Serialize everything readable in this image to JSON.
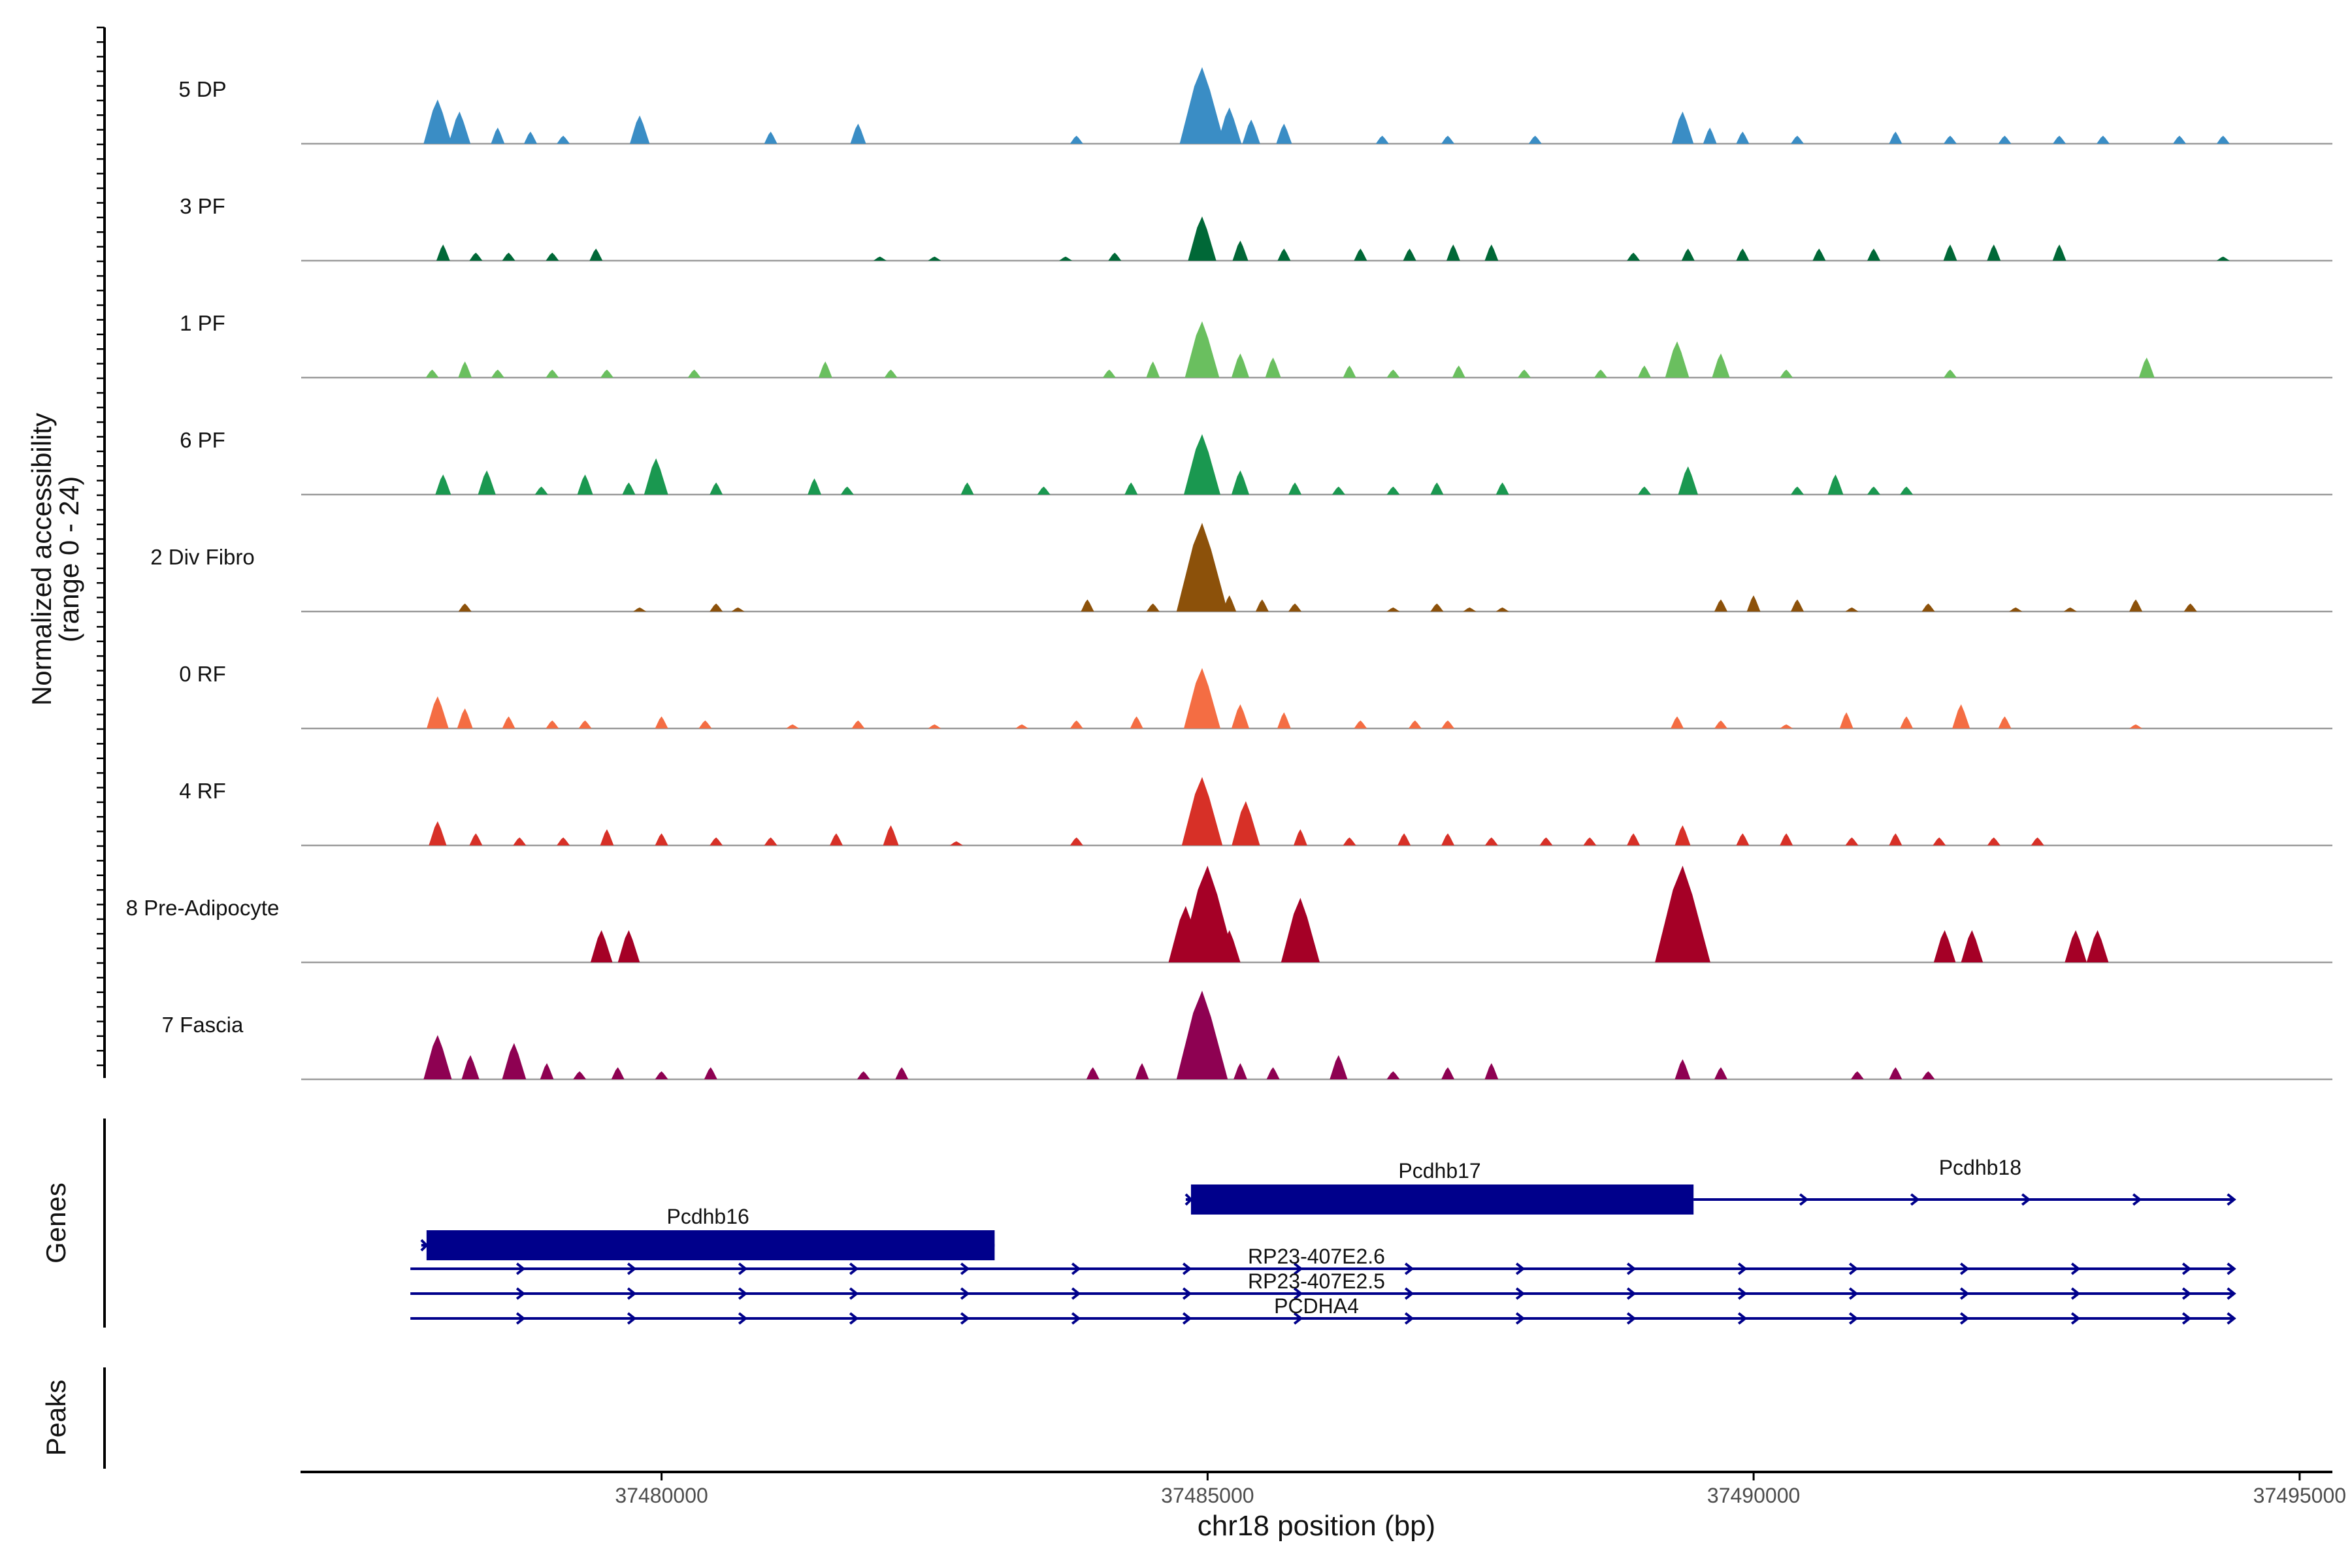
{
  "chart_data": {
    "type": "area",
    "title": "",
    "chromosome": "chr18",
    "xlabel": "chr18 position (bp)",
    "ylabel": "Normalized accessibility",
    "ylabel_range": "(range 0 - 24)",
    "ylim": [
      0,
      24
    ],
    "xlim": [
      37476700,
      37495300
    ],
    "x_ticks": [
      37480000,
      37485000,
      37490000,
      37495000
    ],
    "x_tick_labels": [
      "37480000",
      "37485000",
      "37490000",
      "37495000"
    ],
    "tracks": [
      {
        "name": "5 DP",
        "color": "#3a8dc5",
        "peaks": [
          [
            37477950,
            11
          ],
          [
            37478150,
            8
          ],
          [
            37478500,
            4
          ],
          [
            37478800,
            3
          ],
          [
            37479100,
            2
          ],
          [
            37479800,
            7
          ],
          [
            37481000,
            3
          ],
          [
            37481800,
            5
          ],
          [
            37483800,
            2
          ],
          [
            37484950,
            19
          ],
          [
            37485200,
            9
          ],
          [
            37485400,
            6
          ],
          [
            37485700,
            5
          ],
          [
            37486600,
            2
          ],
          [
            37487200,
            2
          ],
          [
            37488000,
            2
          ],
          [
            37489350,
            8
          ],
          [
            37489600,
            4
          ],
          [
            37489900,
            3
          ],
          [
            37490400,
            2
          ],
          [
            37491300,
            3
          ],
          [
            37491800,
            2
          ],
          [
            37492300,
            2
          ],
          [
            37492800,
            2
          ],
          [
            37493200,
            2
          ],
          [
            37493900,
            2
          ],
          [
            37494300,
            2
          ]
        ]
      },
      {
        "name": "3 PF",
        "color": "#006837",
        "peaks": [
          [
            37478000,
            4
          ],
          [
            37478300,
            2
          ],
          [
            37478600,
            2
          ],
          [
            37479000,
            2
          ],
          [
            37479400,
            3
          ],
          [
            37482000,
            1
          ],
          [
            37482500,
            1
          ],
          [
            37483700,
            1
          ],
          [
            37484150,
            2
          ],
          [
            37484950,
            11
          ],
          [
            37485300,
            5
          ],
          [
            37485700,
            3
          ],
          [
            37486400,
            3
          ],
          [
            37486850,
            3
          ],
          [
            37487250,
            4
          ],
          [
            37487600,
            4
          ],
          [
            37488900,
            2
          ],
          [
            37489400,
            3
          ],
          [
            37489900,
            3
          ],
          [
            37490600,
            3
          ],
          [
            37491100,
            3
          ],
          [
            37491800,
            4
          ],
          [
            37492200,
            4
          ],
          [
            37492800,
            4
          ],
          [
            37494300,
            1
          ]
        ]
      },
      {
        "name": "1 PF",
        "color": "#6abf5f",
        "peaks": [
          [
            37477900,
            2
          ],
          [
            37478200,
            4
          ],
          [
            37478500,
            2
          ],
          [
            37479000,
            2
          ],
          [
            37479500,
            2
          ],
          [
            37480300,
            2
          ],
          [
            37481500,
            4
          ],
          [
            37482100,
            2
          ],
          [
            37484100,
            2
          ],
          [
            37484500,
            4
          ],
          [
            37484950,
            14
          ],
          [
            37485300,
            6
          ],
          [
            37485600,
            5
          ],
          [
            37486300,
            3
          ],
          [
            37486700,
            2
          ],
          [
            37487300,
            3
          ],
          [
            37487900,
            2
          ],
          [
            37488600,
            2
          ],
          [
            37489000,
            3
          ],
          [
            37489300,
            9
          ],
          [
            37489700,
            6
          ],
          [
            37490300,
            2
          ],
          [
            37491800,
            2
          ],
          [
            37493600,
            5
          ]
        ]
      },
      {
        "name": "6 PF",
        "color": "#1a9850",
        "peaks": [
          [
            37478000,
            5
          ],
          [
            37478400,
            6
          ],
          [
            37478900,
            2
          ],
          [
            37479300,
            5
          ],
          [
            37479700,
            3
          ],
          [
            37479950,
            9
          ],
          [
            37480500,
            3
          ],
          [
            37481400,
            4
          ],
          [
            37481700,
            2
          ],
          [
            37482800,
            3
          ],
          [
            37483500,
            2
          ],
          [
            37484300,
            3
          ],
          [
            37484950,
            15
          ],
          [
            37485300,
            6
          ],
          [
            37485800,
            3
          ],
          [
            37486200,
            2
          ],
          [
            37486700,
            2
          ],
          [
            37487100,
            3
          ],
          [
            37487700,
            3
          ],
          [
            37489000,
            2
          ],
          [
            37489400,
            7
          ],
          [
            37490400,
            2
          ],
          [
            37490750,
            5
          ],
          [
            37491100,
            2
          ],
          [
            37491400,
            2
          ]
        ]
      },
      {
        "name": "2 Div Fibro",
        "color": "#8c510a",
        "peaks": [
          [
            37478200,
            2
          ],
          [
            37479800,
            1
          ],
          [
            37480500,
            2
          ],
          [
            37480700,
            1
          ],
          [
            37483900,
            3
          ],
          [
            37484500,
            2
          ],
          [
            37484950,
            22
          ],
          [
            37485200,
            4
          ],
          [
            37485500,
            3
          ],
          [
            37485800,
            2
          ],
          [
            37486700,
            1
          ],
          [
            37487100,
            2
          ],
          [
            37487400,
            1
          ],
          [
            37487700,
            1
          ],
          [
            37489700,
            3
          ],
          [
            37490000,
            4
          ],
          [
            37490400,
            3
          ],
          [
            37490900,
            1
          ],
          [
            37491600,
            2
          ],
          [
            37492400,
            1
          ],
          [
            37492900,
            1
          ],
          [
            37493500,
            3
          ],
          [
            37494000,
            2
          ]
        ]
      },
      {
        "name": "0 RF",
        "color": "#f46d43",
        "peaks": [
          [
            37477950,
            8
          ],
          [
            37478200,
            5
          ],
          [
            37478600,
            3
          ],
          [
            37479000,
            2
          ],
          [
            37479300,
            2
          ],
          [
            37480000,
            3
          ],
          [
            37480400,
            2
          ],
          [
            37481200,
            1
          ],
          [
            37481800,
            2
          ],
          [
            37482500,
            1
          ],
          [
            37483300,
            1
          ],
          [
            37483800,
            2
          ],
          [
            37484350,
            3
          ],
          [
            37484950,
            15
          ],
          [
            37485300,
            6
          ],
          [
            37485700,
            4
          ],
          [
            37486400,
            2
          ],
          [
            37486900,
            2
          ],
          [
            37487200,
            2
          ],
          [
            37489300,
            3
          ],
          [
            37489700,
            2
          ],
          [
            37490300,
            1
          ],
          [
            37490850,
            4
          ],
          [
            37491400,
            3
          ],
          [
            37491900,
            6
          ],
          [
            37492300,
            3
          ],
          [
            37493500,
            1
          ]
        ]
      },
      {
        "name": "4 RF",
        "color": "#d73027",
        "peaks": [
          [
            37477950,
            6
          ],
          [
            37478300,
            3
          ],
          [
            37478700,
            2
          ],
          [
            37479100,
            2
          ],
          [
            37479500,
            4
          ],
          [
            37480000,
            3
          ],
          [
            37480500,
            2
          ],
          [
            37481000,
            2
          ],
          [
            37481600,
            3
          ],
          [
            37482100,
            5
          ],
          [
            37482700,
            1
          ],
          [
            37483800,
            2
          ],
          [
            37484950,
            17
          ],
          [
            37485350,
            11
          ],
          [
            37485850,
            4
          ],
          [
            37486300,
            2
          ],
          [
            37486800,
            3
          ],
          [
            37487200,
            3
          ],
          [
            37487600,
            2
          ],
          [
            37488100,
            2
          ],
          [
            37488500,
            2
          ],
          [
            37488900,
            3
          ],
          [
            37489350,
            5
          ],
          [
            37489900,
            3
          ],
          [
            37490300,
            3
          ],
          [
            37490900,
            2
          ],
          [
            37491300,
            3
          ],
          [
            37491700,
            2
          ],
          [
            37492200,
            2
          ],
          [
            37492600,
            2
          ]
        ]
      },
      {
        "name": "8 Pre-Adipocyte",
        "color": "#a50026",
        "peaks": [
          [
            37479450,
            8
          ],
          [
            37479700,
            8
          ],
          [
            37484800,
            14
          ],
          [
            37485000,
            24
          ],
          [
            37485200,
            8
          ],
          [
            37485850,
            16
          ],
          [
            37489350,
            24
          ],
          [
            37491750,
            8
          ],
          [
            37492000,
            8
          ],
          [
            37492950,
            8
          ],
          [
            37493150,
            8
          ]
        ]
      },
      {
        "name": "7 Fascia",
        "color": "#8e0152",
        "peaks": [
          [
            37477950,
            11
          ],
          [
            37478250,
            6
          ],
          [
            37478650,
            9
          ],
          [
            37478950,
            4
          ],
          [
            37479250,
            2
          ],
          [
            37479600,
            3
          ],
          [
            37480000,
            2
          ],
          [
            37480450,
            3
          ],
          [
            37481850,
            2
          ],
          [
            37482200,
            3
          ],
          [
            37483950,
            3
          ],
          [
            37484400,
            4
          ],
          [
            37484950,
            22
          ],
          [
            37485300,
            4
          ],
          [
            37485600,
            3
          ],
          [
            37486200,
            6
          ],
          [
            37486700,
            2
          ],
          [
            37487200,
            3
          ],
          [
            37487600,
            4
          ],
          [
            37489350,
            5
          ],
          [
            37489700,
            3
          ],
          [
            37490950,
            2
          ],
          [
            37491300,
            3
          ],
          [
            37491600,
            2
          ]
        ]
      }
    ],
    "genes": [
      {
        "name": "Pcdhb16",
        "start": 37477800,
        "end": 37483050,
        "row": 1,
        "has_exon": true
      },
      {
        "name": "Pcdhb17",
        "start": 37484800,
        "end": 37489450,
        "row": 0,
        "has_exon": true
      },
      {
        "name": "Pcdhb18",
        "start": 37489450,
        "end": 37494400,
        "row": 0,
        "has_exon": false
      },
      {
        "name": "RP23-407E2.6",
        "start": 37477700,
        "end": 37494400,
        "row": 2,
        "has_exon": false
      },
      {
        "name": "RP23-407E2.5",
        "start": 37477700,
        "end": 37494400,
        "row": 3,
        "has_exon": false
      },
      {
        "name": "PCDHA4",
        "start": 37477700,
        "end": 37494400,
        "row": 4,
        "has_exon": false
      }
    ],
    "panel_labels": {
      "genes": "Genes",
      "peaks": "Peaks"
    }
  },
  "colors": {
    "gene": "#00008b",
    "baseline": "#9a9a9a",
    "axis": "#000000"
  }
}
